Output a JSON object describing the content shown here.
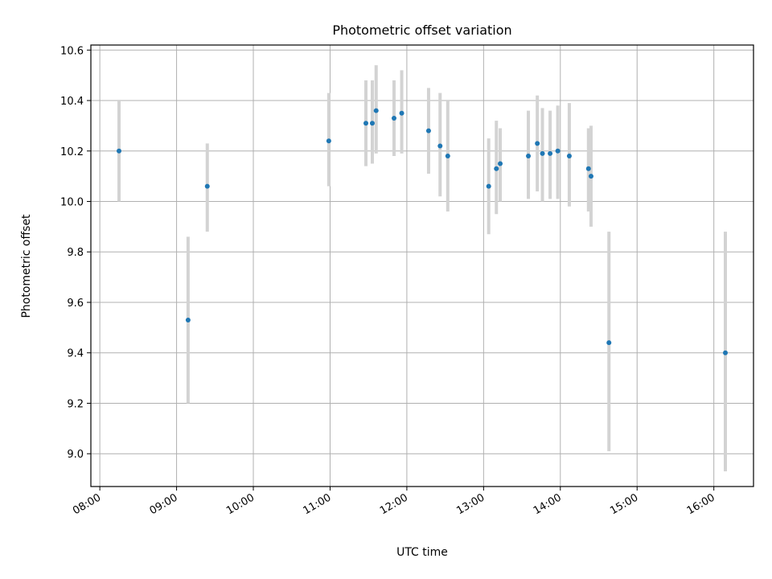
{
  "chart_data": {
    "type": "scatter",
    "title": "Photometric offset variation",
    "xlabel": "UTC time",
    "ylabel": "Photometric offset",
    "xlim": [
      "07:53",
      "16:31"
    ],
    "ylim": [
      8.87,
      10.62
    ],
    "x_ticks": [
      "08:00",
      "09:00",
      "10:00",
      "11:00",
      "12:00",
      "13:00",
      "14:00",
      "15:00",
      "16:00"
    ],
    "y_ticks": [
      "9.0",
      "9.2",
      "9.4",
      "9.6",
      "9.8",
      "10.0",
      "10.2",
      "10.4",
      "10.6"
    ],
    "grid": true,
    "series": [
      {
        "marker_color": "#1f77b4",
        "errorbar_color": "#d3d3d3",
        "points": [
          {
            "x": "08:15",
            "y": 10.2,
            "low": 10.0,
            "high": 10.4
          },
          {
            "x": "09:09",
            "y": 9.53,
            "low": 9.2,
            "high": 9.86
          },
          {
            "x": "09:24",
            "y": 10.06,
            "low": 9.88,
            "high": 10.23
          },
          {
            "x": "10:59",
            "y": 10.24,
            "low": 10.06,
            "high": 10.43
          },
          {
            "x": "11:28",
            "y": 10.31,
            "low": 10.14,
            "high": 10.48
          },
          {
            "x": "11:33",
            "y": 10.31,
            "low": 10.15,
            "high": 10.48
          },
          {
            "x": "11:36",
            "y": 10.36,
            "low": 10.19,
            "high": 10.54
          },
          {
            "x": "11:50",
            "y": 10.33,
            "low": 10.18,
            "high": 10.48
          },
          {
            "x": "11:56",
            "y": 10.35,
            "low": 10.19,
            "high": 10.52
          },
          {
            "x": "12:17",
            "y": 10.28,
            "low": 10.11,
            "high": 10.45
          },
          {
            "x": "12:26",
            "y": 10.22,
            "low": 10.02,
            "high": 10.43
          },
          {
            "x": "12:32",
            "y": 10.18,
            "low": 9.96,
            "high": 10.4
          },
          {
            "x": "13:04",
            "y": 10.06,
            "low": 9.87,
            "high": 10.25
          },
          {
            "x": "13:10",
            "y": 10.13,
            "low": 9.95,
            "high": 10.32
          },
          {
            "x": "13:13",
            "y": 10.15,
            "low": 10.0,
            "high": 10.29
          },
          {
            "x": "13:35",
            "y": 10.18,
            "low": 10.01,
            "high": 10.36
          },
          {
            "x": "13:42",
            "y": 10.23,
            "low": 10.04,
            "high": 10.42
          },
          {
            "x": "13:46",
            "y": 10.19,
            "low": 10.0,
            "high": 10.37
          },
          {
            "x": "13:52",
            "y": 10.19,
            "low": 10.01,
            "high": 10.36
          },
          {
            "x": "13:58",
            "y": 10.2,
            "low": 10.01,
            "high": 10.38
          },
          {
            "x": "14:07",
            "y": 10.18,
            "low": 9.98,
            "high": 10.39
          },
          {
            "x": "14:22",
            "y": 10.13,
            "low": 9.96,
            "high": 10.29
          },
          {
            "x": "14:24",
            "y": 10.1,
            "low": 9.9,
            "high": 10.3
          },
          {
            "x": "14:38",
            "y": 9.44,
            "low": 9.01,
            "high": 9.88
          },
          {
            "x": "16:09",
            "y": 9.4,
            "low": 8.93,
            "high": 9.88
          }
        ]
      }
    ]
  }
}
